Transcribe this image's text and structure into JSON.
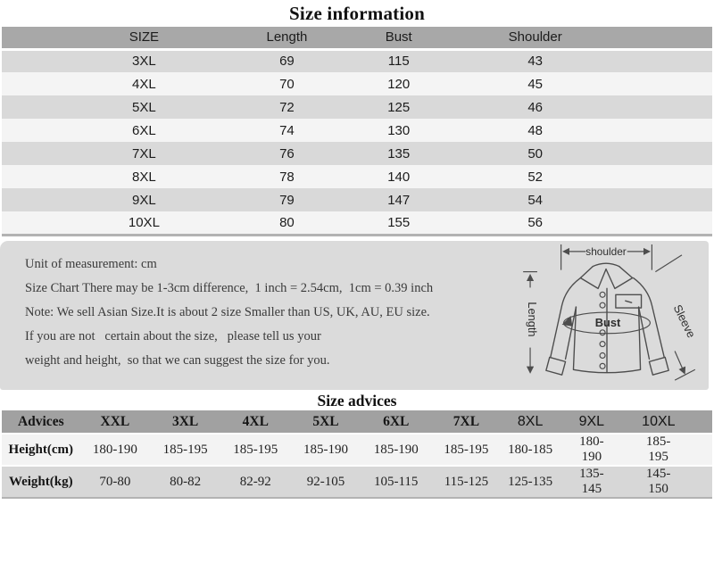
{
  "page_title": "Size information",
  "colors": {
    "table_header_gray": "#a8a8a8",
    "row_gray": "#d9d9d9",
    "row_light": "#f4f4f4",
    "panel_gray": "#dbdbdb",
    "advices_header_gray": "#a1a1a1",
    "text_dark": "#1c1c1c"
  },
  "size_info": {
    "title": "Size information",
    "columns": [
      "SIZE",
      "Length",
      "Bust",
      "Shoulder"
    ],
    "rows": [
      [
        "3XL",
        "69",
        "115",
        "43"
      ],
      [
        "4XL",
        "70",
        "120",
        "45"
      ],
      [
        "5XL",
        "72",
        "125",
        "46"
      ],
      [
        "6XL",
        "74",
        "130",
        "48"
      ],
      [
        "7XL",
        "76",
        "135",
        "50"
      ],
      [
        "8XL",
        "78",
        "140",
        "52"
      ],
      [
        "9XL",
        "79",
        "147",
        "54"
      ],
      [
        "10XL",
        "80",
        "155",
        "56"
      ]
    ]
  },
  "notes": {
    "lines": [
      "Unit of measurement: cm",
      "Size Chart There may be 1-3cm difference,  1 inch = 2.54cm,  1cm = 0.39 inch",
      "Note: We sell Asian Size.It is about 2 size Smaller than US, UK, AU, EU size.",
      "If you are not   certain about the size,   please tell us your",
      "weight and height,  so that we can suggest the size for you."
    ]
  },
  "diagram": {
    "labels": {
      "shoulder": "shoulder",
      "length": "Length",
      "bust": "Bust",
      "sleeve": "Sleeve"
    }
  },
  "size_advices": {
    "title": "Size advices",
    "columns": [
      "Advices",
      "XXL",
      "3XL",
      "4XL",
      "5XL",
      "6XL",
      "7XL",
      "8XL",
      "9XL",
      "10XL"
    ],
    "rows": [
      [
        "Height(cm)",
        "180-190",
        "185-195",
        "185-195",
        "185-190",
        "185-190",
        "185-195",
        "180-185",
        "180-190",
        "185-195"
      ],
      [
        "Weight(kg)",
        "70-80",
        "80-82",
        "82-92",
        "92-105",
        "105-115",
        "115-125",
        "125-135",
        "135-145",
        "145-150"
      ]
    ]
  }
}
